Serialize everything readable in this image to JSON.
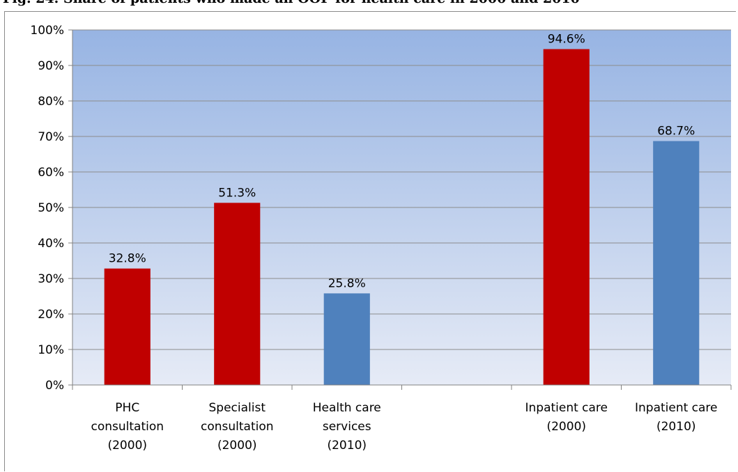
{
  "figure": {
    "title": "Fig. 24. Share of patients who made an OOP for health care in 2000 and 2010"
  },
  "chart_data": {
    "type": "bar",
    "ylim": [
      0,
      100
    ],
    "y_ticks": [
      0,
      10,
      20,
      30,
      40,
      50,
      60,
      70,
      80,
      90,
      100
    ],
    "y_tick_labels": [
      "0%",
      "10%",
      "20%",
      "30%",
      "40%",
      "50%",
      "60%",
      "70%",
      "80%",
      "90%",
      "100%"
    ],
    "grid": true,
    "categories": [
      [
        "PHC",
        "consultation",
        "(2000)"
      ],
      [
        "Specialist",
        "consultation",
        "(2000)"
      ],
      [
        "Health care",
        "services",
        "(2010)"
      ],
      [],
      [
        "Inpatient care",
        "(2000)"
      ],
      [
        "Inpatient care",
        "(2010)"
      ]
    ],
    "values": [
      32.8,
      51.3,
      25.8,
      null,
      94.6,
      68.7
    ],
    "value_labels": [
      "32.8%",
      "51.3%",
      "25.8%",
      "",
      "94.6%",
      "68.7%"
    ],
    "bar_colors": [
      "#c00000",
      "#c00000",
      "#4f81bd",
      null,
      "#c00000",
      "#4f81bd"
    ]
  },
  "colors": {
    "plot_gradient_top": "#97b4e3",
    "plot_gradient_bottom": "#e6ebf6",
    "gridline": "#8c8c8c",
    "axis": "#808080",
    "text": "#000000"
  }
}
